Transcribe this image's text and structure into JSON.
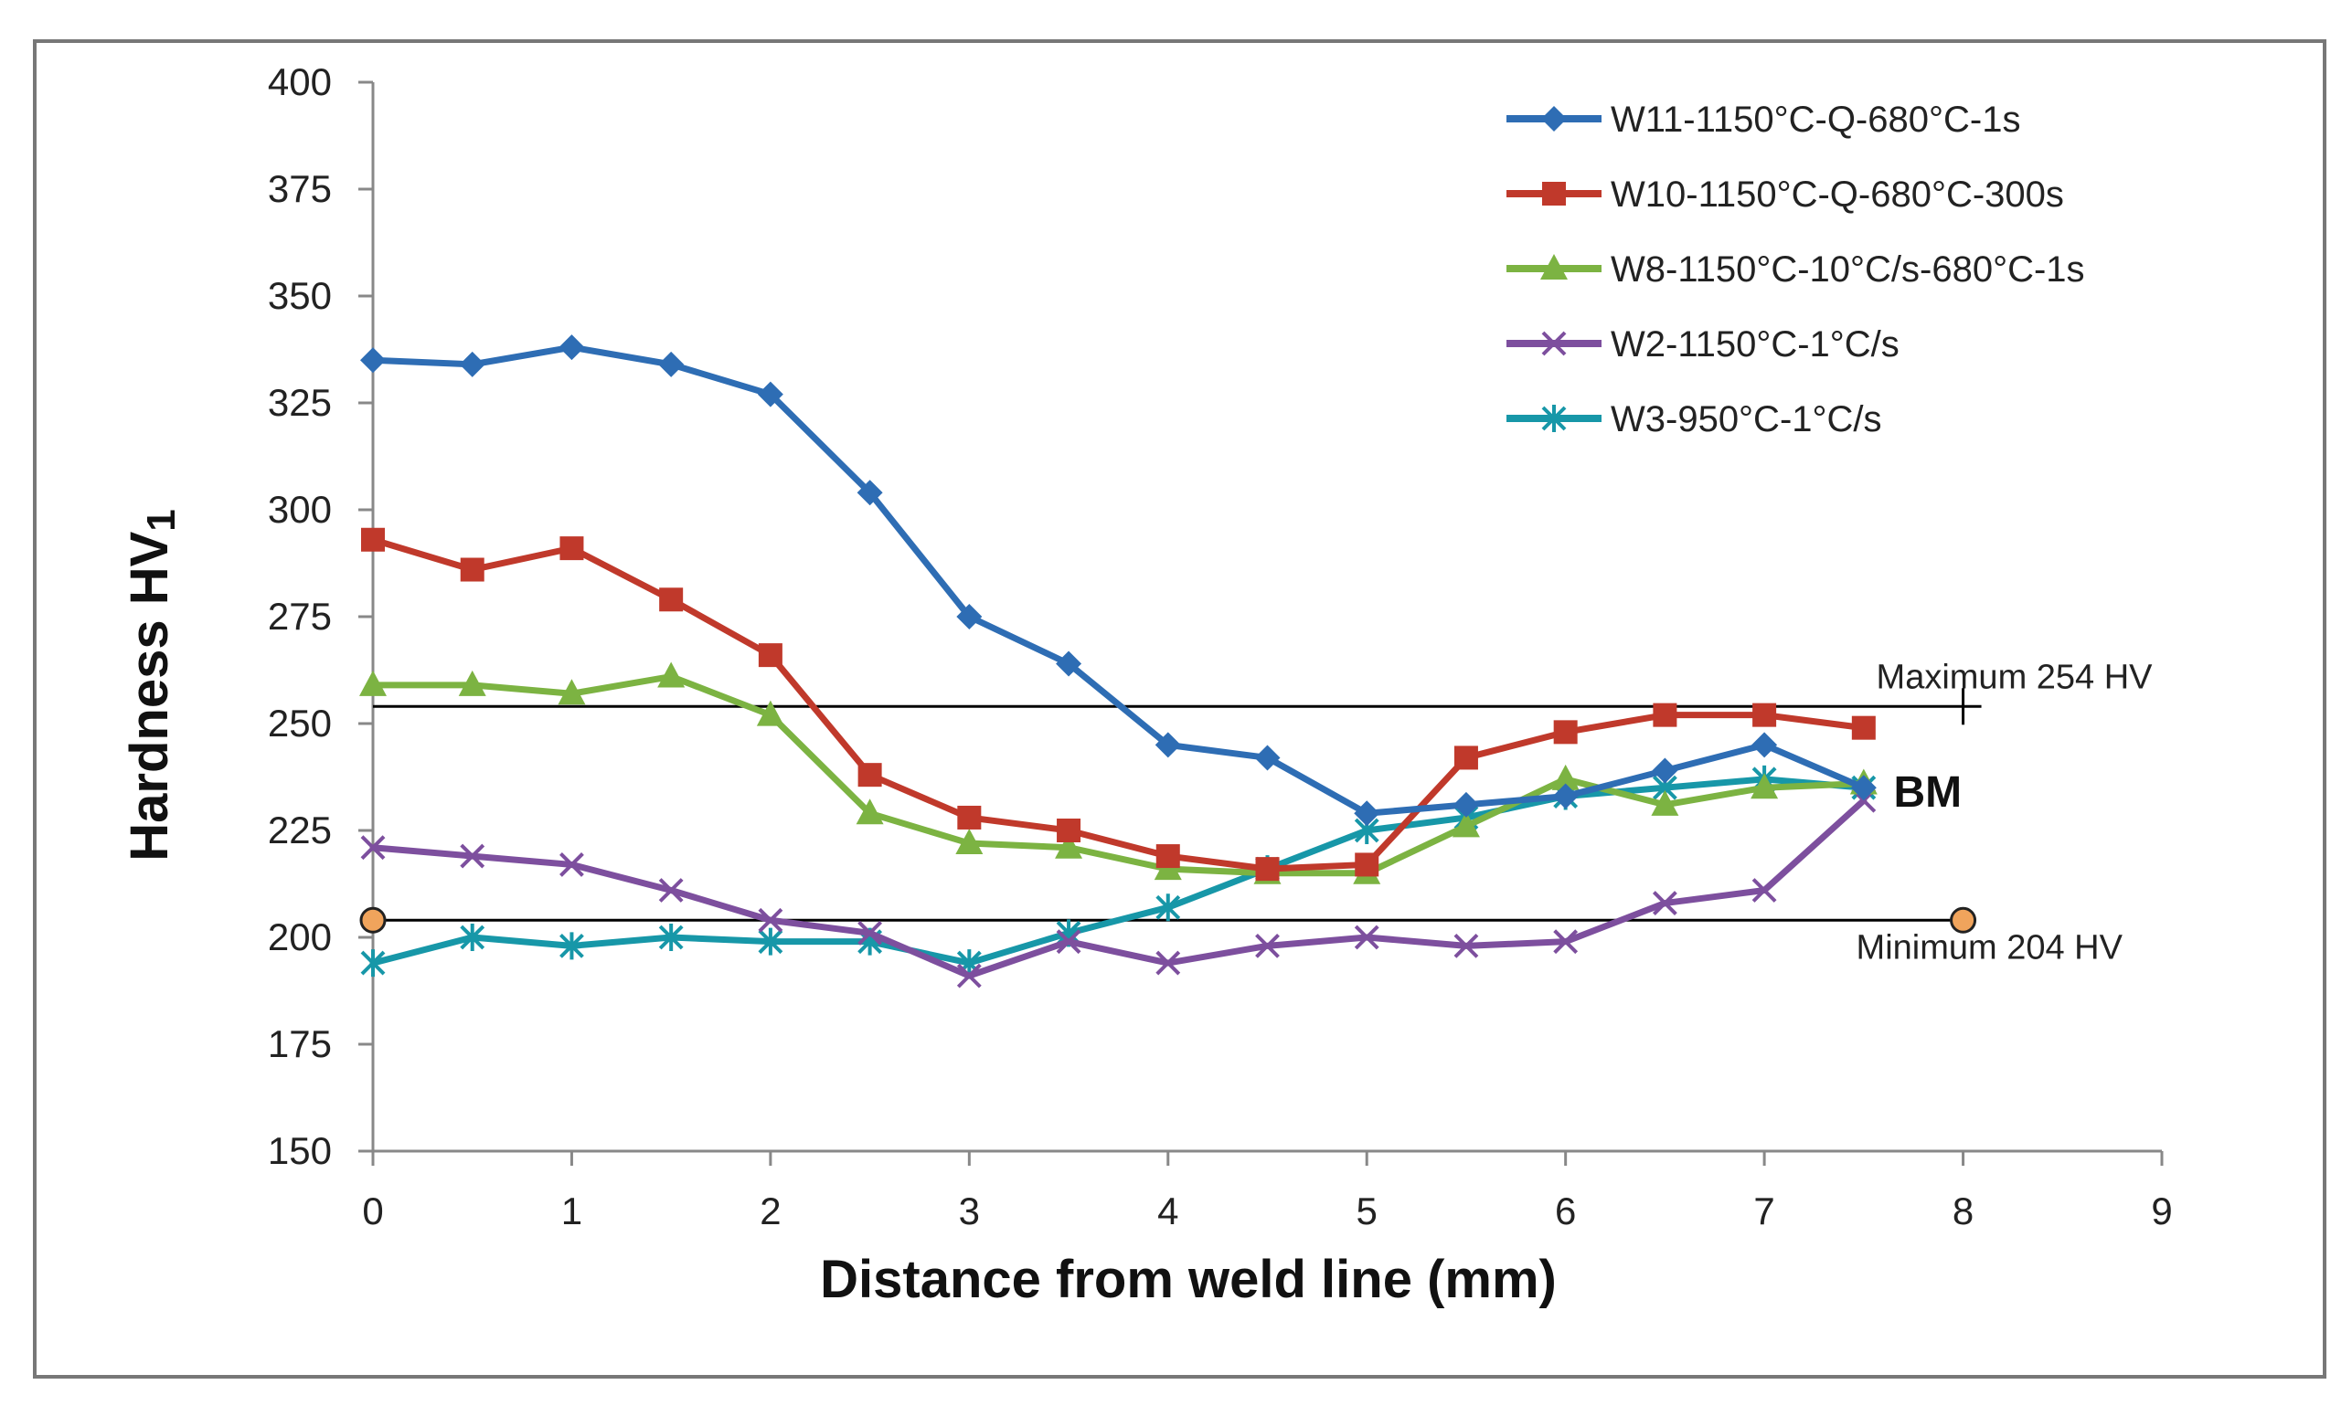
{
  "chart_data": {
    "type": "line",
    "title": "",
    "xlabel": "Distance from weld line (mm)",
    "ylabel": "Hardness HV",
    "ylabel_subscript": "1",
    "xlim": [
      0,
      9
    ],
    "ylim": [
      150,
      400
    ],
    "x_ticks": [
      0,
      1,
      2,
      3,
      4,
      5,
      6,
      7,
      8,
      9
    ],
    "y_ticks": [
      150,
      175,
      200,
      225,
      250,
      275,
      300,
      325,
      350,
      375,
      400
    ],
    "grid": false,
    "legend_position": "top-right",
    "x": [
      0,
      0.5,
      1,
      1.5,
      2,
      2.5,
      3,
      3.5,
      4,
      4.5,
      5,
      5.5,
      6,
      6.5,
      7,
      7.5
    ],
    "series": [
      {
        "name": "W11-1150°C-Q-680°C-1s",
        "color": "#2e6db4",
        "marker": "diamond",
        "values": [
          335,
          334,
          338,
          334,
          327,
          304,
          275,
          264,
          245,
          242,
          229,
          231,
          233,
          239,
          245,
          235
        ]
      },
      {
        "name": "W10-1150°C-Q-680°C-300s",
        "color": "#c0392b",
        "marker": "square",
        "values": [
          293,
          286,
          291,
          279,
          266,
          238,
          228,
          225,
          219,
          216,
          217,
          242,
          248,
          252,
          252,
          249
        ]
      },
      {
        "name": "W8-1150°C-10°C/s-680°C-1s",
        "color": "#7cb342",
        "marker": "triangle",
        "values": [
          259,
          259,
          257,
          261,
          252,
          229,
          222,
          221,
          216,
          215,
          215,
          226,
          237,
          231,
          235,
          236
        ]
      },
      {
        "name": "W2-1150°C-1°C/s",
        "color": "#7d4f9e",
        "marker": "x",
        "values": [
          221,
          219,
          217,
          211,
          204,
          201,
          191,
          199,
          194,
          198,
          200,
          198,
          199,
          208,
          211,
          232
        ]
      },
      {
        "name": "W3-950°C-1°C/s",
        "color": "#1797a8",
        "marker": "star",
        "values": [
          194,
          200,
          198,
          200,
          199,
          199,
          194,
          201,
          207,
          216,
          225,
          228,
          233,
          235,
          237,
          235
        ]
      }
    ],
    "reference_lines": [
      {
        "label": "Maximum 254 HV",
        "y": 254,
        "x_start": 0,
        "x_end": 8
      },
      {
        "label": "Minimum 204 HV",
        "y": 204,
        "x_start": 0,
        "x_end": 8
      }
    ],
    "annotations": [
      {
        "text": "BM",
        "x": 7.65,
        "y": 234
      }
    ]
  }
}
